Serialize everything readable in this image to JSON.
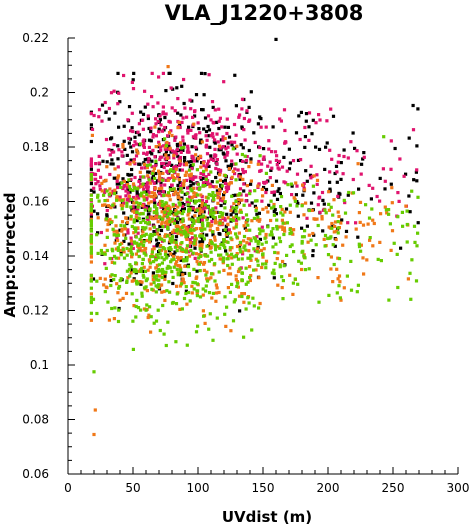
{
  "chart_data": {
    "type": "scatter",
    "title": "VLA_J1220+3808",
    "xlabel": "UVdist (m)",
    "ylabel": "Amp:corrected",
    "xlim": [
      0,
      300
    ],
    "ylim": [
      0.06,
      0.22
    ],
    "xticks": [
      "0",
      "50",
      "100",
      "150",
      "200",
      "250",
      "300"
    ],
    "yticks": [
      "0.06",
      "0.08",
      "0.1",
      "0.12",
      "0.14",
      "0.16",
      "0.18",
      "0.2",
      "0.22"
    ],
    "grid": false,
    "legend": "none",
    "series": [
      {
        "color": "#000000",
        "x_range": [
          18,
          272
        ],
        "peak_x": 70,
        "amp_mean": 0.167,
        "amp_spread": 0.018
      },
      {
        "color": "#e0146e",
        "x_range": [
          18,
          272
        ],
        "peak_x": 70,
        "amp_mean": 0.172,
        "amp_spread": 0.014
      },
      {
        "color": "#f07818",
        "x_range": [
          18,
          272
        ],
        "peak_x": 80,
        "amp_mean": 0.15,
        "amp_spread": 0.015
      },
      {
        "color": "#66cc00",
        "x_range": [
          18,
          272
        ],
        "peak_x": 80,
        "amp_mean": 0.145,
        "amp_spread": 0.014
      }
    ],
    "outliers": [
      {
        "x": 160,
        "y": 0.2195,
        "color": "#000000"
      },
      {
        "x": 77,
        "y": 0.2095,
        "color": "#f07818"
      },
      {
        "x": 20,
        "y": 0.0745,
        "color": "#f07818"
      },
      {
        "x": 21,
        "y": 0.0835,
        "color": "#f07818"
      },
      {
        "x": 20,
        "y": 0.0975,
        "color": "#66cc00"
      }
    ]
  }
}
